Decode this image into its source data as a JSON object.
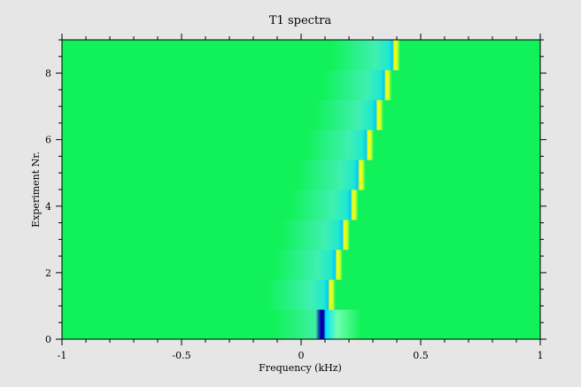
{
  "chart_data": {
    "type": "heatmap",
    "title": "T1 spectra",
    "xlabel": "Frequency (kHz)",
    "ylabel": "Experiment Nr.",
    "xlim": [
      -1,
      1
    ],
    "ylim": [
      0,
      9
    ],
    "x_ticks": [
      -1,
      -0.5,
      0,
      0.5,
      1
    ],
    "x_tick_labels": [
      "-1",
      "-0.5",
      "0",
      "0.5",
      "1"
    ],
    "y_ticks": [
      0,
      2,
      4,
      6,
      8
    ],
    "y_tick_labels": [
      "0",
      "2",
      "4",
      "6",
      "8"
    ],
    "experiments": [
      {
        "nr": 0,
        "peak_khz": 0.09
      },
      {
        "nr": 1,
        "peak_khz": 0.12
      },
      {
        "nr": 2,
        "peak_khz": 0.15
      },
      {
        "nr": 3,
        "peak_khz": 0.18
      },
      {
        "nr": 4,
        "peak_khz": 0.215
      },
      {
        "nr": 5,
        "peak_khz": 0.245
      },
      {
        "nr": 6,
        "peak_khz": 0.28
      },
      {
        "nr": 7,
        "peak_khz": 0.32
      },
      {
        "nr": 8,
        "peak_khz": 0.355
      },
      {
        "nr": 9,
        "peak_khz": 0.39
      }
    ],
    "colormap": {
      "background": "#11f25a",
      "dip": "#00c8ff",
      "deep_dip": "#0000aa",
      "high": "#ffff00"
    },
    "grid": false
  }
}
